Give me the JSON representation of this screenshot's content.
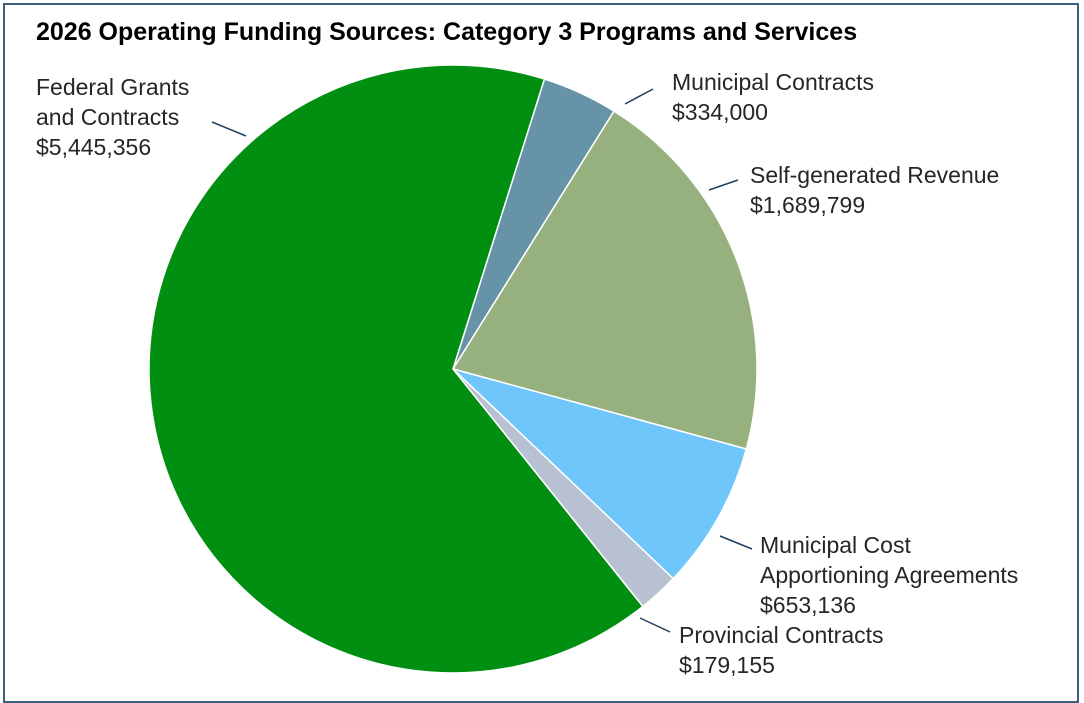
{
  "chart_data": {
    "type": "pie",
    "title": "2026 Operating Funding Sources: Category 3 Programs and Services",
    "start_angle_deg": 17.5,
    "direction": "clockwise",
    "slices": [
      {
        "lines": [
          "Municipal Contracts",
          "$334,000"
        ],
        "value": 334000,
        "color": "#6693a7"
      },
      {
        "lines": [
          "Self-generated Revenue",
          "$1,689,799"
        ],
        "value": 1689799,
        "color": "#97b17e"
      },
      {
        "lines": [
          "Municipal Cost",
          "Apportioning Agreements",
          "$653,136"
        ],
        "value": 653136,
        "color": "#6ec6fb"
      },
      {
        "lines": [
          "Provincial Contracts",
          "$179,155"
        ],
        "value": 179155,
        "color": "#b7c1d1"
      },
      {
        "lines": [
          "Federal Grants",
          "and Contracts",
          "$5,445,356"
        ],
        "value": 5445356,
        "color": "#008f11"
      }
    ],
    "slice_border_color": "#ffffff",
    "leader_color": "#1f3f5f",
    "frame_color": "#3f5f7f"
  }
}
